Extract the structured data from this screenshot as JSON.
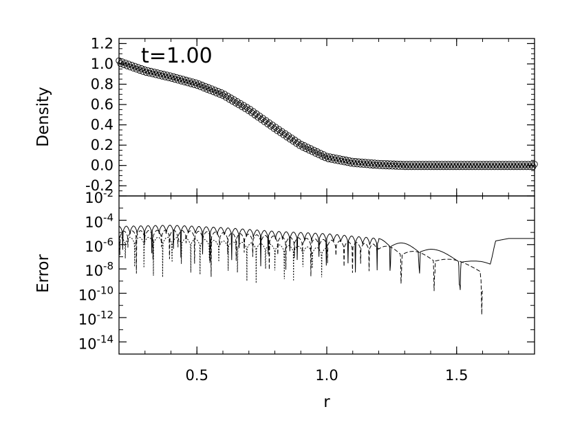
{
  "chart_data": [
    {
      "type": "scatter",
      "ylabel": "Density",
      "xlim": [
        0.2,
        1.8
      ],
      "ylim": [
        -0.3,
        1.25
      ],
      "yticks": [
        "-0.2",
        "0.0",
        "0.2",
        "0.4",
        "0.6",
        "0.8",
        "1.0",
        "1.2"
      ],
      "ytick_values": [
        -0.2,
        0.0,
        0.2,
        0.4,
        0.6,
        0.8,
        1.0,
        1.2
      ],
      "annotation": "t=1.00",
      "marker": "open-circle",
      "series": [
        {
          "x": [
            0.2,
            0.3,
            0.4,
            0.5,
            0.6,
            0.7,
            0.8,
            0.9,
            1.0,
            1.1,
            1.2,
            1.3,
            1.4,
            1.5,
            1.6,
            1.7,
            1.8
          ],
          "values": [
            1.02,
            0.93,
            0.87,
            0.8,
            0.7,
            0.55,
            0.37,
            0.2,
            0.08,
            0.03,
            0.01,
            0.0,
            0.0,
            0.0,
            0.0,
            0.0,
            0.0
          ]
        }
      ]
    },
    {
      "type": "line",
      "ylabel": "Error",
      "xlabel": "r",
      "xlim": [
        0.2,
        1.8
      ],
      "yscale": "log",
      "ylim_exp": [
        -15,
        -2
      ],
      "xticks": [
        "0.5",
        "1.0",
        "1.5"
      ],
      "xtick_values": [
        0.5,
        1.0,
        1.5
      ],
      "yticks_base": "10",
      "ytick_exps": [
        "-14",
        "-12",
        "-10",
        "-8",
        "-6",
        "-4",
        "-2"
      ],
      "ytick_exp_values": [
        -14,
        -12,
        -10,
        -8,
        -6,
        -4,
        -2
      ],
      "series": [
        {
          "style": "solid",
          "envelope_x": [
            0.2,
            0.4,
            0.6,
            0.8,
            1.0,
            1.2,
            1.4,
            1.5,
            1.6,
            1.63,
            1.65,
            1.7,
            1.8
          ],
          "envelope_log10": [
            -4.5,
            -4.4,
            -4.6,
            -4.9,
            -5.1,
            -5.5,
            -6.3,
            -6.9,
            -7.4,
            -7.6,
            -5.7,
            -5.5,
            -5.5
          ]
        },
        {
          "style": "dashed",
          "envelope_x": [
            0.2,
            0.4,
            0.6,
            0.8,
            1.0,
            1.2,
            1.4,
            1.6
          ],
          "envelope_log10": [
            -4.9,
            -4.8,
            -5.0,
            -5.3,
            -5.6,
            -6.0,
            -6.8,
            -7.8
          ]
        },
        {
          "style": "dotted",
          "envelope_x": [
            0.2,
            0.4,
            0.6,
            0.8,
            1.0
          ],
          "envelope_log10": [
            -5.4,
            -5.4,
            -5.7,
            -6.0,
            -6.3
          ]
        }
      ]
    }
  ]
}
